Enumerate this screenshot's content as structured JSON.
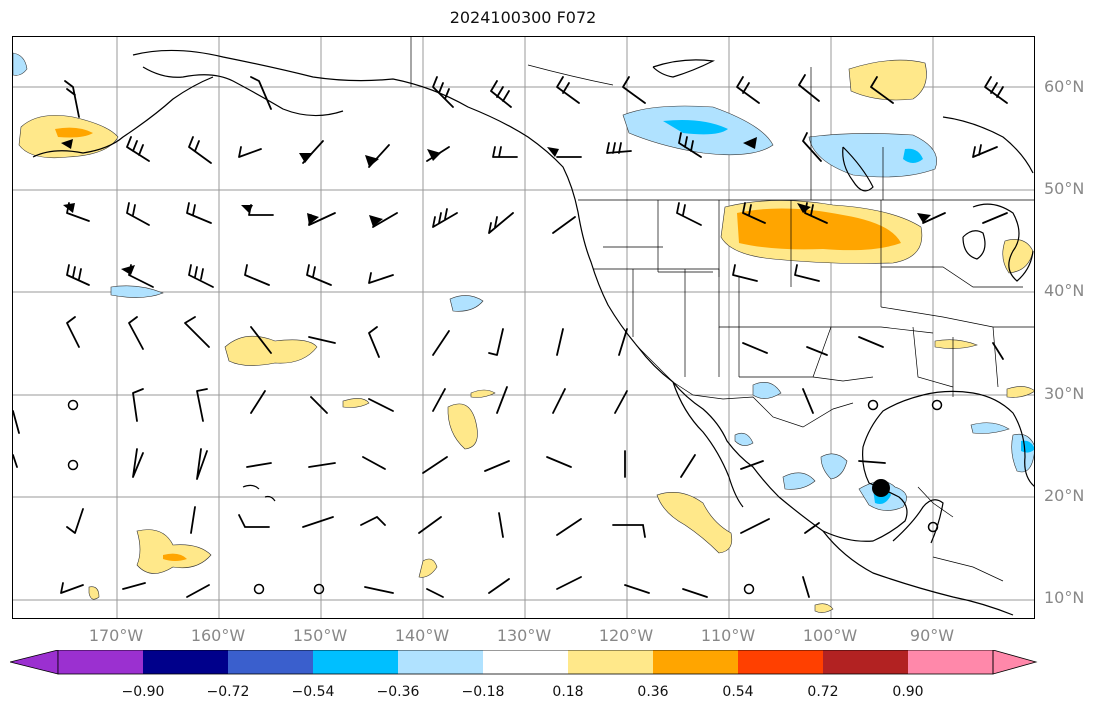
{
  "title": "2024100300 F072",
  "lat_labels": [
    "60°N",
    "50°N",
    "40°N",
    "30°N",
    "20°N",
    "10°N"
  ],
  "lon_labels": [
    "170°W",
    "160°W",
    "150°W",
    "140°W",
    "130°W",
    "120°W",
    "110°W",
    "100°W",
    "90°W"
  ],
  "colorbar": {
    "ticks": [
      "−0.90",
      "−0.72",
      "−0.54",
      "−0.36",
      "−0.18",
      "0.18",
      "0.36",
      "0.54",
      "0.72",
      "0.90"
    ],
    "colors": [
      "#9b30d0",
      "#00008b",
      "#3a5fcd",
      "#00bfff",
      "#b0e2ff",
      "#ffffff",
      "#ffe88a",
      "#ffa500",
      "#ff4000",
      "#b22222",
      "#ff88aa"
    ]
  },
  "fill_colors": {
    "light_yellow": "#ffe88a",
    "orange": "#ffa500",
    "light_blue": "#b0e2ff",
    "sky_blue": "#00bfff"
  },
  "marker": {
    "color": "#000000",
    "location": "Bay of Campeche"
  }
}
